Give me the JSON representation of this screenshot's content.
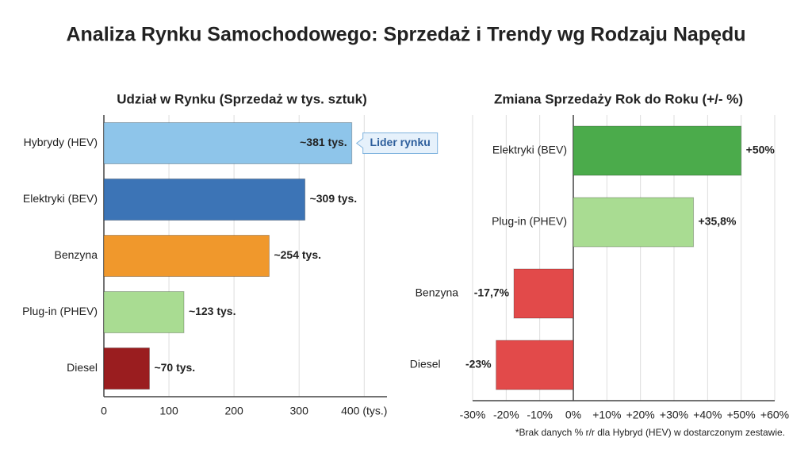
{
  "title": "Analiza Rynku Samochodowego: Sprzedaż i Trendy wg Rodzaju Napędu",
  "chart_data": [
    {
      "type": "bar",
      "orientation": "horizontal",
      "title": "Udział w Rynku (Sprzedaż w tys. sztuk)",
      "categories": [
        "Hybrydy (HEV)",
        "Elektryki (BEV)",
        "Benzyna",
        "Plug-in (PHEV)",
        "Diesel"
      ],
      "values": [
        381,
        309,
        254,
        123,
        70
      ],
      "value_labels": [
        "~381 tys.",
        "~309 tys.",
        "~254 tys.",
        "~123 tys.",
        "~70 tys."
      ],
      "colors": [
        "#8ec5ea",
        "#3c74b6",
        "#f0982c",
        "#a9dc92",
        "#9a1d1f"
      ],
      "xlim": [
        0,
        435
      ],
      "xticks": [
        0,
        100,
        200,
        300,
        {
          "value": 400,
          "label": "400 (tys.)"
        }
      ],
      "grid": true,
      "annotation": "Lider rynku"
    },
    {
      "type": "bar",
      "orientation": "horizontal",
      "title": "Zmiana Sprzedaży Rok do Roku (+/- %)",
      "categories": [
        "Elektryki (BEV)",
        "Plug-in (PHEV)",
        "Benzyna",
        "Diesel"
      ],
      "values": [
        50,
        35.8,
        -17.7,
        -23
      ],
      "value_labels": [
        "+50%",
        "+35,8%",
        "-17,7%",
        "-23%"
      ],
      "colors": [
        "#4bab4b",
        "#a9dc92",
        "#e24a4a",
        "#e24a4a"
      ],
      "xlim": [
        -30,
        60
      ],
      "xticks": [
        {
          "value": -30,
          "label": "-30%"
        },
        {
          "value": -20,
          "label": "-20%"
        },
        {
          "value": -10,
          "label": "-10%"
        },
        {
          "value": 0,
          "label": "0%"
        },
        {
          "value": 10,
          "label": "+10%"
        },
        {
          "value": 20,
          "label": "+20%"
        },
        {
          "value": 30,
          "label": "+30%"
        },
        {
          "value": 40,
          "label": "+40%"
        },
        {
          "value": 50,
          "label": "+50%"
        },
        {
          "value": 60,
          "label": "+60%"
        }
      ],
      "grid": true,
      "footnote": "*Brak danych % r/r dla Hybryd (HEV) w dostarczonym zestawie."
    }
  ]
}
